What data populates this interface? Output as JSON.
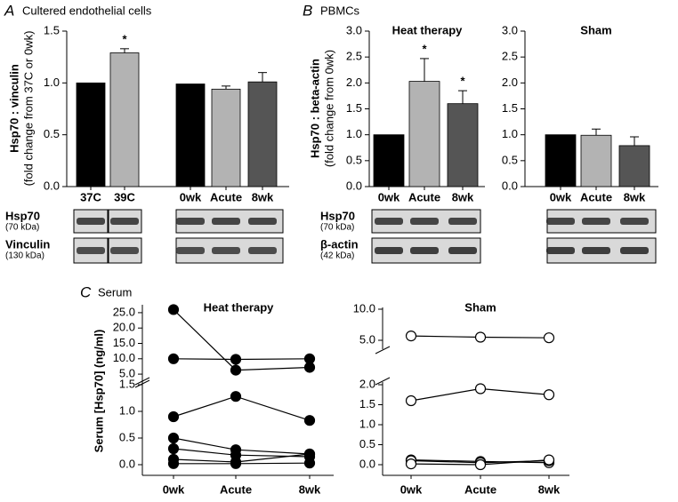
{
  "chart_data": [
    {
      "type": "bar",
      "panel": "A",
      "panel_title": "Cultered endothelial cells",
      "ylabel": "Hsp70 : vinculin",
      "ylabel_note": "(fold change from 37C or 0wk)",
      "ylim": [
        0,
        1.5
      ],
      "yticks": [
        {
          "value": 0,
          "label": "0.0"
        },
        0.5,
        {
          "value": 1,
          "label": "1.0"
        },
        1.5
      ],
      "groups": [
        {
          "categories": [
            "37C",
            "39C"
          ],
          "values": [
            1.0,
            1.29
          ],
          "errors": [
            null,
            0.04
          ],
          "colors": [
            "#000000",
            "#b3b3b3"
          ],
          "annotations": [
            null,
            "*"
          ]
        },
        {
          "categories": [
            "0wk",
            "Acute",
            "8wk"
          ],
          "values": [
            0.99,
            0.94,
            1.01
          ],
          "errors": [
            null,
            0.03,
            0.09
          ],
          "colors": [
            "#000000",
            "#b3b3b3",
            "#555555"
          ],
          "annotations": [
            null,
            null,
            null
          ]
        }
      ],
      "blots": [
        {
          "label": "Hsp70",
          "note": "(70 kDa)"
        },
        {
          "label": "Vinculin",
          "note": "(130 kDa)"
        }
      ]
    },
    {
      "type": "bar",
      "panel": "B",
      "panel_title": "PBMCs",
      "title": "Heat therapy",
      "ylabel": "Hsp70 : beta-actin",
      "ylabel_note": "(fold change from 0wk)",
      "ylim": [
        0,
        3
      ],
      "yticks": [
        {
          "value": 0,
          "label": "0.0"
        },
        0.5,
        {
          "value": 1,
          "label": "1.0"
        },
        1.5,
        {
          "value": 2,
          "label": "2.0"
        },
        2.5,
        {
          "value": 3,
          "label": "3.0"
        }
      ],
      "groups": [
        {
          "categories": [
            "0wk",
            "Acute",
            "8wk"
          ],
          "values": [
            1.0,
            2.03,
            1.6
          ],
          "errors": [
            null,
            0.44,
            0.25
          ],
          "colors": [
            "#000000",
            "#b3b3b3",
            "#555555"
          ],
          "annotations": [
            null,
            "*",
            "*"
          ]
        }
      ],
      "blots": [
        {
          "label": "Hsp70",
          "note": "(70 kDa)"
        },
        {
          "label": "β-actin",
          "note": "(42 kDa)"
        }
      ]
    },
    {
      "type": "bar",
      "title": "Sham",
      "ylim": [
        0,
        3
      ],
      "yticks": [
        {
          "value": 0,
          "label": "0.0"
        },
        0.5,
        {
          "value": 1,
          "label": "1.0"
        },
        1.5,
        {
          "value": 2,
          "label": "2.0"
        },
        2.5,
        {
          "value": 3,
          "label": "3.0"
        }
      ],
      "groups": [
        {
          "categories": [
            "0wk",
            "Acute",
            "8wk"
          ],
          "values": [
            1.0,
            0.99,
            0.79
          ],
          "errors": [
            null,
            0.12,
            0.17
          ],
          "colors": [
            "#000000",
            "#b3b3b3",
            "#555555"
          ],
          "annotations": [
            null,
            null,
            null
          ]
        }
      ]
    },
    {
      "type": "line",
      "panel": "C",
      "panel_title": "Serum",
      "title": "Heat therapy",
      "ylabel": "Serum [Hsp70] (ng/ml)",
      "color": "#000000",
      "marker_fill": "#000000",
      "categories": [
        "0wk",
        "Acute",
        "8wk"
      ],
      "y_segments": [
        {
          "ylim": [
            0,
            1.5
          ],
          "yticks": [
            {
              "value": 0,
              "label": "0.0"
            },
            0.5,
            {
              "value": 1,
              "label": "1.0"
            },
            1.5
          ]
        },
        {
          "ylim": [
            3,
            27
          ],
          "yticks": [
            {
              "value": 5,
              "label": "5.0"
            },
            {
              "value": 10,
              "label": "10.0"
            },
            {
              "value": 15,
              "label": "15.0"
            },
            {
              "value": 20,
              "label": "20.0"
            },
            {
              "value": 25,
              "label": "25.0"
            }
          ]
        }
      ],
      "series": [
        {
          "values": [
            26,
            6.3,
            7.2
          ]
        },
        {
          "values": [
            10,
            9.8,
            10
          ]
        },
        {
          "values": [
            0.9,
            1.28,
            0.83
          ]
        },
        {
          "values": [
            0.5,
            0.28,
            0.2
          ]
        },
        {
          "values": [
            0.3,
            0.18,
            0.15
          ]
        },
        {
          "values": [
            0.1,
            0.05,
            0.2
          ]
        },
        {
          "values": [
            0.02,
            0.02,
            0.03
          ]
        }
      ]
    },
    {
      "type": "line",
      "title": "Sham",
      "color": "#000000",
      "marker_fill": "#ffffff",
      "categories": [
        "0wk",
        "Acute",
        "8wk"
      ],
      "y_segments": [
        {
          "ylim": [
            0,
            2
          ],
          "yticks": [
            {
              "value": 0,
              "label": "0.0"
            },
            0.5,
            {
              "value": 1,
              "label": "1.0"
            },
            1.5,
            {
              "value": 2,
              "label": "2.0"
            }
          ]
        },
        {
          "ylim": [
            4,
            10
          ],
          "yticks": [
            {
              "value": 5,
              "label": "5.0"
            },
            {
              "value": 10,
              "label": "10.0"
            }
          ]
        }
      ],
      "series": [
        {
          "values": [
            5.7,
            5.5,
            5.4
          ]
        },
        {
          "values": [
            1.6,
            1.9,
            1.75
          ]
        },
        {
          "values": [
            0.12,
            0.08,
            0.05
          ]
        },
        {
          "values": [
            0.1,
            0.05,
            0.1
          ]
        },
        {
          "values": [
            0.02,
            0.0,
            0.12
          ]
        }
      ]
    }
  ]
}
